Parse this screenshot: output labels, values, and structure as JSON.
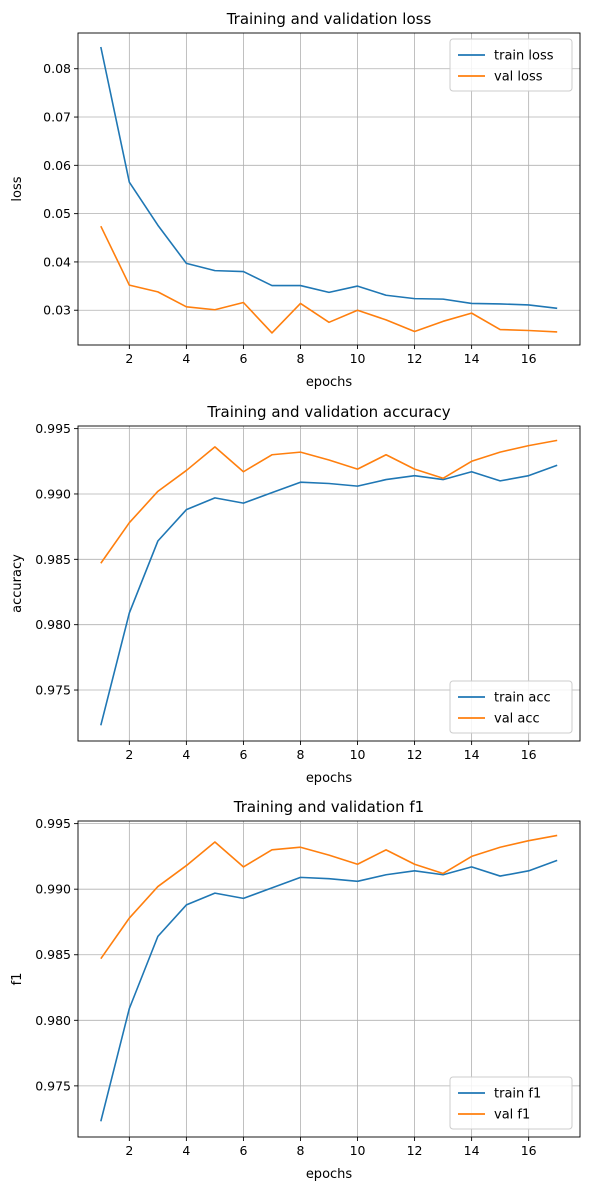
{
  "figure": {
    "colors": {
      "train": "#1f77b4",
      "val": "#ff7f0e",
      "grid": "#b0b0b0",
      "axes": "#000000"
    }
  },
  "chart_data": [
    {
      "type": "line",
      "title": "Training and validation loss",
      "xlabel": "epochs",
      "ylabel": "loss",
      "grid": true,
      "legend_position": "upper-right",
      "xlim": [
        0.2,
        17.8
      ],
      "ylim": [
        0.0228,
        0.0874
      ],
      "xticks": [
        2,
        4,
        6,
        8,
        10,
        12,
        14,
        16
      ],
      "yticks": [
        0.03,
        0.04,
        0.05,
        0.06,
        0.07,
        0.08
      ],
      "yticklabels": [
        "0.03",
        "0.04",
        "0.05",
        "0.06",
        "0.07",
        "0.08"
      ],
      "x": [
        1,
        2,
        3,
        4,
        5,
        6,
        7,
        8,
        9,
        10,
        11,
        12,
        13,
        14,
        15,
        16,
        17
      ],
      "series": [
        {
          "name": "train loss",
          "values": [
            0.0845,
            0.0565,
            0.0476,
            0.0397,
            0.0382,
            0.038,
            0.0351,
            0.0351,
            0.0337,
            0.035,
            0.0331,
            0.0324,
            0.0323,
            0.0314,
            0.0313,
            0.0311,
            0.0304
          ]
        },
        {
          "name": "val loss",
          "values": [
            0.0474,
            0.0352,
            0.0338,
            0.0307,
            0.0301,
            0.0316,
            0.0253,
            0.0314,
            0.0275,
            0.03,
            0.028,
            0.0256,
            0.0277,
            0.0294,
            0.026,
            0.0258,
            0.0255
          ]
        }
      ]
    },
    {
      "type": "line",
      "title": "Training and validation accuracy",
      "xlabel": "epochs",
      "ylabel": "accuracy",
      "grid": true,
      "legend_position": "lower-right",
      "xlim": [
        0.2,
        17.8
      ],
      "ylim": [
        0.9711,
        0.9952
      ],
      "xticks": [
        2,
        4,
        6,
        8,
        10,
        12,
        14,
        16
      ],
      "yticks": [
        0.975,
        0.98,
        0.985,
        0.99,
        0.995
      ],
      "yticklabels": [
        "0.975",
        "0.980",
        "0.985",
        "0.990",
        "0.995"
      ],
      "x": [
        1,
        2,
        3,
        4,
        5,
        6,
        7,
        8,
        9,
        10,
        11,
        12,
        13,
        14,
        15,
        16,
        17
      ],
      "series": [
        {
          "name": "train acc",
          "values": [
            0.9723,
            0.9809,
            0.9864,
            0.9888,
            0.9897,
            0.9893,
            0.9901,
            0.9909,
            0.9908,
            0.9906,
            0.9911,
            0.9914,
            0.9911,
            0.9917,
            0.991,
            0.9914,
            0.9922
          ]
        },
        {
          "name": "val acc",
          "values": [
            0.9847,
            0.9878,
            0.9902,
            0.9918,
            0.9936,
            0.9917,
            0.993,
            0.9932,
            0.9926,
            0.9919,
            0.993,
            0.9919,
            0.9912,
            0.9925,
            0.9932,
            0.9937,
            0.9941
          ]
        }
      ]
    },
    {
      "type": "line",
      "title": "Training and validation f1",
      "xlabel": "epochs",
      "ylabel": "f1",
      "grid": true,
      "legend_position": "lower-right",
      "xlim": [
        0.2,
        17.8
      ],
      "ylim": [
        0.9711,
        0.9952
      ],
      "xticks": [
        2,
        4,
        6,
        8,
        10,
        12,
        14,
        16
      ],
      "yticks": [
        0.975,
        0.98,
        0.985,
        0.99,
        0.995
      ],
      "yticklabels": [
        "0.975",
        "0.980",
        "0.985",
        "0.990",
        "0.995"
      ],
      "x": [
        1,
        2,
        3,
        4,
        5,
        6,
        7,
        8,
        9,
        10,
        11,
        12,
        13,
        14,
        15,
        16,
        17
      ],
      "series": [
        {
          "name": "train f1",
          "values": [
            0.9723,
            0.9809,
            0.9864,
            0.9888,
            0.9897,
            0.9893,
            0.9901,
            0.9909,
            0.9908,
            0.9906,
            0.9911,
            0.9914,
            0.9911,
            0.9917,
            0.991,
            0.9914,
            0.9922
          ]
        },
        {
          "name": "val f1",
          "values": [
            0.9847,
            0.9878,
            0.9902,
            0.9918,
            0.9936,
            0.9917,
            0.993,
            0.9932,
            0.9926,
            0.9919,
            0.993,
            0.9919,
            0.9912,
            0.9925,
            0.9932,
            0.9937,
            0.9941
          ]
        }
      ]
    }
  ]
}
